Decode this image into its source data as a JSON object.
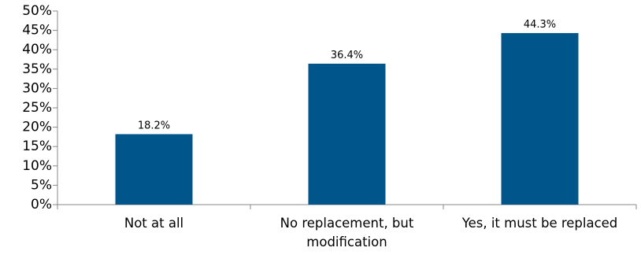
{
  "chart_data": {
    "type": "bar",
    "categories": [
      [
        "Not at all"
      ],
      [
        "No replacement, but",
        "modification"
      ],
      [
        "Yes, it must be replaced"
      ]
    ],
    "values": [
      18.2,
      36.4,
      44.3
    ],
    "data_labels": [
      "18.2%",
      "36.4%",
      "44.3%"
    ],
    "ylim": [
      0,
      50
    ],
    "yticks": [
      0,
      5,
      10,
      15,
      20,
      25,
      30,
      35,
      40,
      45,
      50
    ],
    "ytick_labels": [
      "0%",
      "5%",
      "10%",
      "15%",
      "20%",
      "25%",
      "30%",
      "35%",
      "40%",
      "45%",
      "50%"
    ],
    "bar_color": "#00568b",
    "axis_color": "#888888",
    "grid": false,
    "legend": "none"
  }
}
